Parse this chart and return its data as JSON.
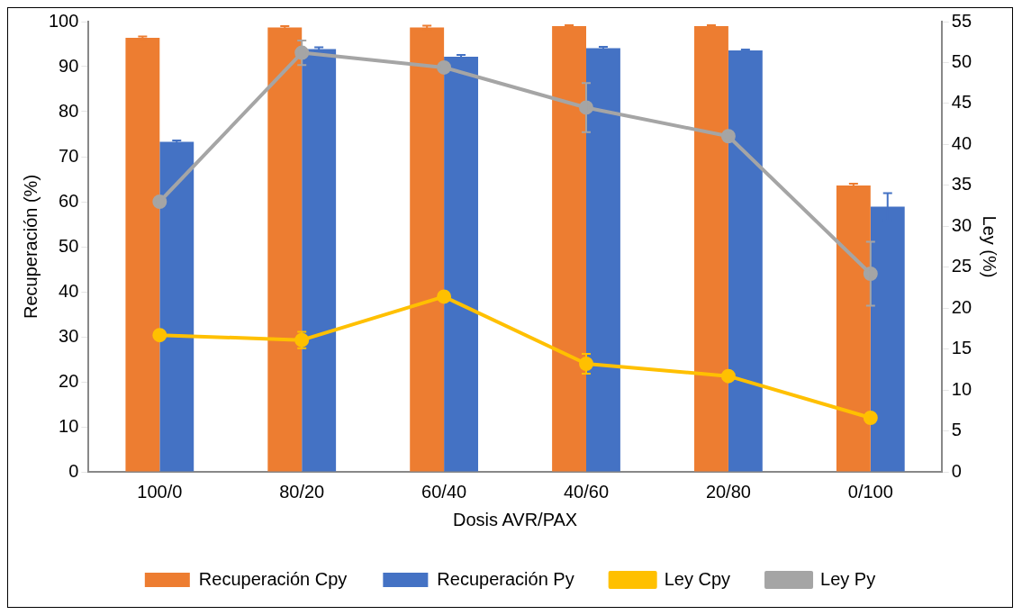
{
  "chart_data": {
    "type": "bar",
    "xlabel": "Dosis AVR/PAX",
    "ylabel": "Recuperación (%)",
    "y2label": "Ley (%)",
    "categories": [
      "100/0",
      "80/20",
      "60/40",
      "40/60",
      "20/80",
      "0/100"
    ],
    "series": [
      {
        "name": "Recuperación Cpy",
        "color": "#ed7d31",
        "values": [
          96.4,
          98.7,
          98.7,
          99,
          99,
          63.6
        ],
        "errors": [
          0.3,
          0.3,
          0.4,
          0.2,
          0.2,
          0.4
        ]
      },
      {
        "name": "Recuperación Py",
        "color": "#4472c4",
        "values": [
          73.3,
          93.9,
          92.2,
          94.1,
          93.6,
          58.9
        ],
        "errors": [
          0.3,
          0.4,
          0.4,
          0.3,
          0.2,
          3
        ]
      },
      {
        "name": "Ley Cpy",
        "type": "line",
        "axis": "y2",
        "color": "#ffc000",
        "values": [
          16.7,
          16.1,
          21.4,
          13.2,
          11.7,
          6.6
        ],
        "errors": [
          null,
          1,
          null,
          1.2,
          null,
          null
        ]
      },
      {
        "name": "Ley Py",
        "type": "line",
        "axis": "y2",
        "color": "#a5a5a5",
        "values": [
          33,
          51.2,
          49.4,
          44.5,
          41,
          24.2
        ],
        "errors": [
          null,
          1.5,
          null,
          3,
          null,
          3.9
        ]
      }
    ],
    "ylim": [
      0,
      100
    ],
    "yticks": [
      0,
      10,
      20,
      30,
      40,
      50,
      60,
      70,
      80,
      90,
      100
    ],
    "y2lim": [
      0,
      55
    ],
    "y2ticks": [
      0,
      5,
      10,
      15,
      20,
      25,
      30,
      35,
      40,
      45,
      50,
      55
    ],
    "grid": false,
    "legend": "bottom",
    "marker": "circle",
    "line_style": "solid"
  }
}
